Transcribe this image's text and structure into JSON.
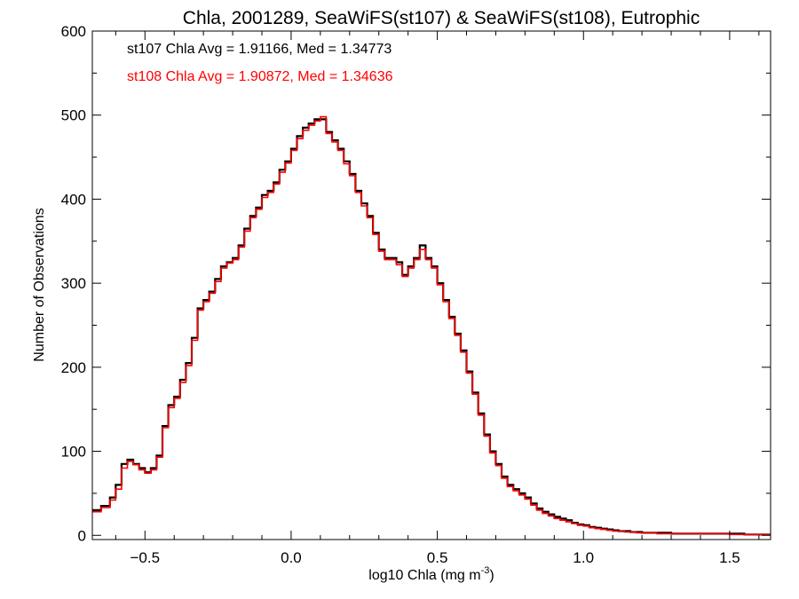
{
  "chart_data": {
    "type": "line",
    "step": true,
    "title": "Chla, 2001289, SeaWiFS(st107) & SeaWiFS(st108), Eutrophic",
    "xlabel_base": "log10 Chla (mg m",
    "xlabel_sup": "-3",
    "xlabel_close": ")",
    "ylabel": "Number of Observations",
    "xlim": [
      -0.68,
      1.64
    ],
    "ylim": [
      -5,
      600
    ],
    "xticks": [
      -0.5,
      0.0,
      0.5,
      1.0,
      1.5
    ],
    "xtick_labels": [
      "−0.5",
      "0.0",
      "0.5",
      "1.0",
      "1.5"
    ],
    "yticks": [
      0,
      100,
      200,
      300,
      400,
      500,
      600
    ],
    "ytick_labels": [
      "0",
      "100",
      "200",
      "300",
      "400",
      "500",
      "600"
    ],
    "grid": false,
    "annotations": [
      {
        "text": "st107 Chla Avg = 1.91166, Med = 1.34773",
        "color": "#000000"
      },
      {
        "text": "st108 Chla Avg = 1.90872, Med = 1.34636",
        "color": "#ff0000"
      }
    ],
    "series": [
      {
        "color": "#000000",
        "x": [
          -0.68,
          -0.65,
          -0.62,
          -0.6,
          -0.58,
          -0.56,
          -0.54,
          -0.52,
          -0.5,
          -0.48,
          -0.46,
          -0.44,
          -0.42,
          -0.4,
          -0.38,
          -0.36,
          -0.34,
          -0.32,
          -0.3,
          -0.28,
          -0.26,
          -0.24,
          -0.22,
          -0.2,
          -0.18,
          -0.16,
          -0.14,
          -0.12,
          -0.1,
          -0.08,
          -0.06,
          -0.04,
          -0.02,
          0.0,
          0.02,
          0.04,
          0.06,
          0.08,
          0.1,
          0.12,
          0.14,
          0.16,
          0.18,
          0.2,
          0.22,
          0.24,
          0.26,
          0.28,
          0.3,
          0.32,
          0.34,
          0.36,
          0.38,
          0.4,
          0.42,
          0.44,
          0.46,
          0.48,
          0.5,
          0.52,
          0.54,
          0.56,
          0.58,
          0.6,
          0.62,
          0.64,
          0.66,
          0.68,
          0.7,
          0.72,
          0.74,
          0.76,
          0.78,
          0.8,
          0.82,
          0.84,
          0.86,
          0.88,
          0.9,
          0.92,
          0.94,
          0.96,
          0.98,
          1.0,
          1.02,
          1.04,
          1.06,
          1.08,
          1.1,
          1.12,
          1.14,
          1.16,
          1.18,
          1.2,
          1.25,
          1.3,
          1.35,
          1.4,
          1.45,
          1.5,
          1.55,
          1.6
        ],
        "y": [
          30,
          35,
          45,
          60,
          85,
          90,
          85,
          80,
          75,
          80,
          95,
          130,
          155,
          165,
          185,
          205,
          235,
          270,
          280,
          290,
          305,
          320,
          325,
          330,
          345,
          365,
          380,
          390,
          405,
          410,
          420,
          435,
          445,
          460,
          475,
          485,
          490,
          495,
          495,
          480,
          470,
          460,
          445,
          430,
          410,
          395,
          380,
          360,
          340,
          330,
          330,
          325,
          310,
          320,
          330,
          345,
          330,
          320,
          300,
          280,
          260,
          240,
          220,
          195,
          170,
          145,
          120,
          100,
          85,
          70,
          60,
          55,
          50,
          45,
          38,
          32,
          28,
          25,
          22,
          20,
          18,
          15,
          13,
          12,
          10,
          9,
          8,
          7,
          6,
          5,
          5,
          4,
          4,
          3,
          3,
          2,
          2,
          2,
          2,
          2,
          1,
          1
        ]
      },
      {
        "color": "#ff0000",
        "x": [
          -0.68,
          -0.65,
          -0.62,
          -0.6,
          -0.58,
          -0.56,
          -0.54,
          -0.52,
          -0.5,
          -0.48,
          -0.46,
          -0.44,
          -0.42,
          -0.4,
          -0.38,
          -0.36,
          -0.34,
          -0.32,
          -0.3,
          -0.28,
          -0.26,
          -0.24,
          -0.22,
          -0.2,
          -0.18,
          -0.16,
          -0.14,
          -0.12,
          -0.1,
          -0.08,
          -0.06,
          -0.04,
          -0.02,
          0.0,
          0.02,
          0.04,
          0.06,
          0.08,
          0.1,
          0.12,
          0.14,
          0.16,
          0.18,
          0.2,
          0.22,
          0.24,
          0.26,
          0.28,
          0.3,
          0.32,
          0.34,
          0.36,
          0.38,
          0.4,
          0.42,
          0.44,
          0.46,
          0.48,
          0.5,
          0.52,
          0.54,
          0.56,
          0.58,
          0.6,
          0.62,
          0.64,
          0.66,
          0.68,
          0.7,
          0.72,
          0.74,
          0.76,
          0.78,
          0.8,
          0.82,
          0.84,
          0.86,
          0.88,
          0.9,
          0.92,
          0.94,
          0.96,
          0.98,
          1.0,
          1.02,
          1.04,
          1.06,
          1.08,
          1.1,
          1.12,
          1.14,
          1.16,
          1.18,
          1.2,
          1.25,
          1.3,
          1.35,
          1.4,
          1.45,
          1.5,
          1.55,
          1.6
        ],
        "y": [
          28,
          33,
          42,
          55,
          80,
          88,
          84,
          78,
          74,
          78,
          93,
          128,
          152,
          163,
          182,
          202,
          232,
          268,
          278,
          288,
          302,
          318,
          324,
          328,
          343,
          362,
          378,
          388,
          402,
          408,
          418,
          432,
          443,
          458,
          472,
          482,
          488,
          493,
          498,
          478,
          468,
          458,
          442,
          428,
          408,
          392,
          378,
          358,
          338,
          328,
          328,
          322,
          308,
          318,
          328,
          340,
          328,
          318,
          298,
          278,
          258,
          238,
          218,
          193,
          168,
          143,
          118,
          98,
          83,
          68,
          58,
          53,
          48,
          43,
          36,
          30,
          26,
          23,
          20,
          18,
          16,
          14,
          12,
          11,
          9,
          8,
          7,
          6,
          5,
          5,
          4,
          4,
          3,
          3,
          2,
          2,
          2,
          2,
          2,
          1,
          1,
          1
        ]
      }
    ]
  }
}
